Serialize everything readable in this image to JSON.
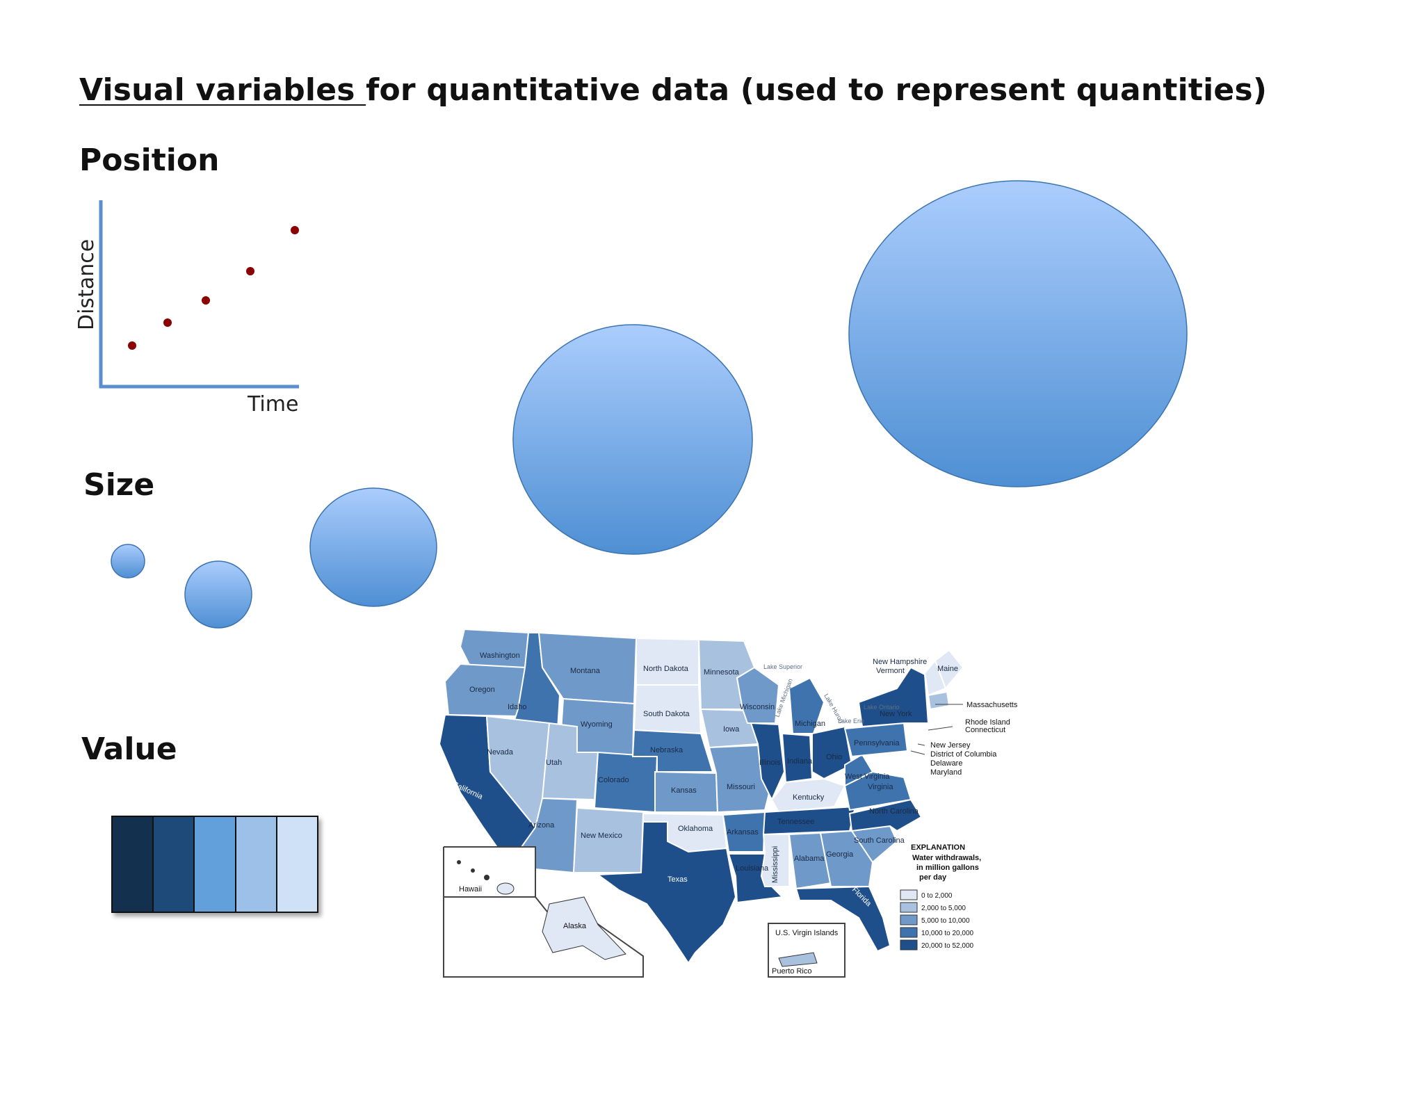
{
  "title": {
    "underlined": "Visual variables ",
    "rest": "for quantitative data (used to represent quantities)"
  },
  "position": {
    "heading": "Position",
    "x_label": "Time",
    "y_label": "Distance",
    "point_color": "#8b0000",
    "axis_color": "#5b8fd0"
  },
  "size": {
    "heading": "Size",
    "circle_color_light": "#a9cbff",
    "circle_color_dark": "#4f8fd4"
  },
  "value": {
    "heading": "Value",
    "swatches": [
      "#14304f",
      "#1d4a78",
      "#62a0dc",
      "#9dc0e8",
      "#cfe1f7"
    ]
  },
  "map": {
    "states": [
      "Washington",
      "Oregon",
      "California",
      "Idaho",
      "Nevada",
      "Montana",
      "Wyoming",
      "Utah",
      "Arizona",
      "Colorado",
      "New Mexico",
      "North Dakota",
      "South Dakota",
      "Nebraska",
      "Kansas",
      "Oklahoma",
      "Texas",
      "Minnesota",
      "Iowa",
      "Missouri",
      "Arkansas",
      "Louisiana",
      "Wisconsin",
      "Illinois",
      "Michigan",
      "Indiana",
      "Ohio",
      "Kentucky",
      "Tennessee",
      "Mississippi",
      "Alabama",
      "Georgia",
      "Florida",
      "South Carolina",
      "North Carolina",
      "Virginia",
      "West Virginia",
      "Pennsylvania",
      "New York",
      "Vermont",
      "New Hampshire",
      "Maine",
      "Lake Superior",
      "Lake Michigan",
      "Lake Huron",
      "Lake Erie",
      "Lake Ontario"
    ],
    "callouts": [
      "Massachusetts",
      "Rhode Island",
      "Connecticut",
      "New Jersey",
      "District of Columbia",
      "Delaware",
      "Maryland"
    ],
    "insets": [
      "Hawaii",
      "Alaska",
      "U.S. Virgin Islands",
      "Puerto Rico"
    ],
    "legend": {
      "title": "EXPLANATION",
      "subtitle": [
        "Water withdrawals,",
        "in million gallons",
        "per day"
      ],
      "items": [
        {
          "label": "0 to 2,000",
          "color": "#dfe8f4"
        },
        {
          "label": "2,000 to 5,000",
          "color": "#a7c1df"
        },
        {
          "label": "5,000 to 10,000",
          "color": "#6f99c8"
        },
        {
          "label": "10,000 to 20,000",
          "color": "#3f73ae"
        },
        {
          "label": "20,000 to 52,000",
          "color": "#1e4f8a"
        }
      ]
    }
  }
}
